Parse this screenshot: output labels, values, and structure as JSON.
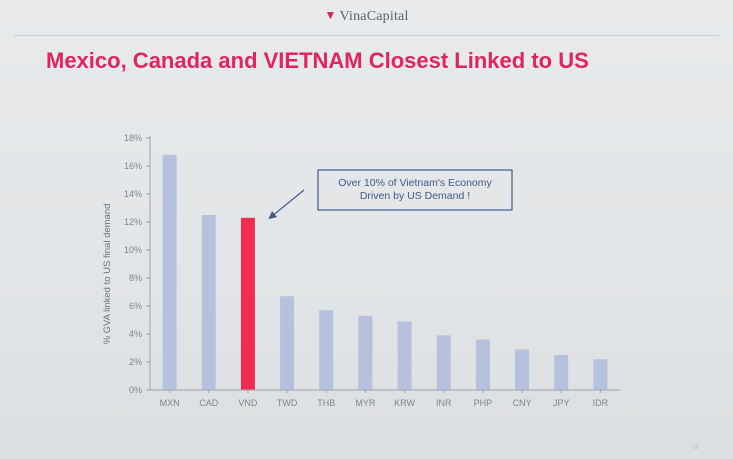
{
  "brand": "VinaCapital",
  "title": "Mexico, Canada and VIETNAM Closest Linked to US",
  "colors": {
    "title": "#e0245e",
    "bar": "#b5c1dd",
    "highlight_bar": "#ee2d4f",
    "annotation": "#3f5a8a"
  },
  "chart_data": {
    "type": "bar",
    "categories": [
      "MXN",
      "CAD",
      "VND",
      "TWD",
      "THB",
      "MYR",
      "KRW",
      "INR",
      "PHP",
      "CNY",
      "JPY",
      "IDR"
    ],
    "values": [
      16.8,
      12.5,
      12.3,
      6.7,
      5.7,
      5.3,
      4.9,
      3.9,
      3.6,
      2.9,
      2.5,
      2.2
    ],
    "highlight": "VND",
    "ylabel": "% GVA linked to US final demand",
    "ylim": [
      0,
      18
    ],
    "yticks": [
      "0%",
      "2%",
      "4%",
      "6%",
      "8%",
      "10%",
      "12%",
      "14%",
      "16%",
      "18%"
    ],
    "annotation": [
      "Over 10% of Vietnam's Economy",
      "Driven by US Demand !"
    ],
    "grid": false,
    "legend": "none"
  }
}
